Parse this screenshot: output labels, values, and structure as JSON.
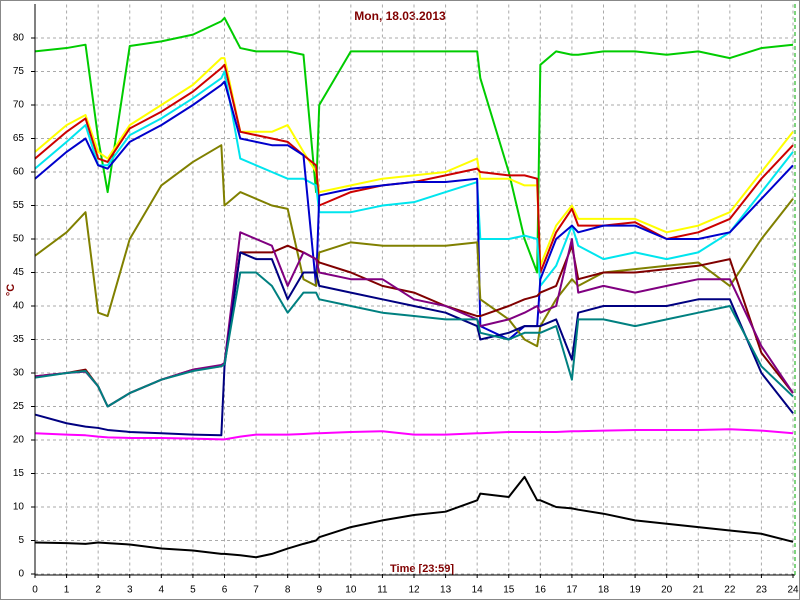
{
  "chart_data": {
    "type": "line",
    "title": "Mon, 18.03.2013",
    "x_label": "Time [23:59]",
    "y_label": "°C",
    "x": [
      0,
      1,
      1.6,
      2,
      2.3,
      3,
      4,
      5,
      5.9,
      6,
      6.5,
      7,
      7.5,
      8,
      8.5,
      8.9,
      9,
      10,
      11,
      12,
      13,
      14,
      14.1,
      15,
      15.5,
      15.9,
      16,
      16.5,
      17,
      17.2,
      18,
      19,
      20,
      21,
      22,
      23,
      24
    ],
    "xlim": [
      0,
      24
    ],
    "xticks": [
      0,
      1,
      2,
      3,
      4,
      5,
      6,
      7,
      8,
      9,
      10,
      11,
      12,
      13,
      14,
      15,
      16,
      17,
      18,
      19,
      20,
      21,
      22,
      23,
      24
    ],
    "ylim": [
      0,
      85
    ],
    "yticks": [
      0,
      5,
      10,
      15,
      20,
      25,
      30,
      35,
      40,
      45,
      50,
      55,
      60,
      65,
      70,
      75,
      80
    ],
    "grid": true,
    "series": [
      {
        "color": "#00cc00",
        "values": [
          78,
          78.5,
          79,
          65,
          57,
          78.8,
          79.5,
          80.5,
          82.5,
          83,
          78.5,
          78,
          78,
          78,
          77.5,
          57,
          70,
          78,
          78,
          78,
          78,
          78,
          74,
          60,
          50,
          45,
          76,
          78,
          77.5,
          77.5,
          78,
          78,
          77.5,
          78,
          77,
          78.5,
          79
        ]
      },
      {
        "color": "#ffff00",
        "values": [
          63,
          67,
          68.5,
          63,
          62,
          67,
          70,
          73,
          77,
          77,
          66,
          66,
          66,
          67,
          63,
          60,
          57,
          58,
          59,
          59.5,
          60,
          62,
          59,
          59,
          58,
          58,
          46,
          52,
          55,
          53,
          53,
          53,
          51,
          52,
          54,
          60,
          66
        ]
      },
      {
        "color": "#cc0000",
        "values": [
          62,
          66,
          68,
          62,
          61.5,
          66.5,
          69,
          72,
          75.5,
          76,
          66,
          65.5,
          65,
          64.5,
          62.5,
          61,
          55,
          57,
          58,
          58.5,
          59.5,
          60.5,
          60,
          59.5,
          59.5,
          59,
          45,
          51,
          54.5,
          52,
          52,
          52.5,
          50,
          51,
          53,
          59,
          64
        ]
      },
      {
        "color": "#00e5ee",
        "values": [
          60.5,
          64.5,
          67,
          61,
          61,
          65.5,
          68,
          71,
          74,
          75,
          62,
          61,
          60,
          59,
          59,
          58,
          54,
          54,
          55,
          55.5,
          57,
          58.5,
          50,
          50,
          50.5,
          50,
          43,
          46,
          52,
          49,
          47,
          48,
          47,
          48,
          51,
          57,
          63
        ]
      },
      {
        "color": "#0000cc",
        "values": [
          59,
          63,
          65,
          61,
          60.5,
          64.5,
          67,
          70,
          73,
          73.5,
          65,
          64.5,
          64,
          64,
          62.5,
          43,
          56.5,
          57.5,
          58,
          58.5,
          58.5,
          59,
          37,
          35,
          37,
          37,
          44,
          50,
          52,
          51,
          52,
          52,
          50,
          50,
          51,
          56,
          61
        ]
      },
      {
        "color": "#808000",
        "values": [
          47.5,
          51,
          54,
          39,
          38.5,
          50,
          58,
          61.5,
          64,
          55,
          57,
          56,
          55,
          54.5,
          44,
          43,
          48,
          49.5,
          49,
          49,
          49,
          49.5,
          41,
          38,
          35,
          34,
          37,
          41,
          44,
          43,
          45,
          45.5,
          46,
          46.5,
          43,
          50,
          56
        ]
      },
      {
        "color": "#800000",
        "values": [
          29.5,
          30,
          30.5,
          28,
          25,
          27,
          29,
          30.5,
          31,
          31.5,
          48,
          48,
          48,
          49,
          48,
          47,
          46.5,
          45,
          43,
          42,
          40,
          38.5,
          38.5,
          40,
          41,
          41.5,
          42,
          43,
          49,
          44,
          45,
          45,
          45.5,
          46,
          47,
          33,
          27
        ]
      },
      {
        "color": "#800080",
        "values": [
          29.5,
          30,
          30.2,
          28,
          25,
          27,
          29,
          30.5,
          31.2,
          31.5,
          51,
          50,
          49,
          43,
          48,
          47,
          45,
          44,
          44,
          41,
          40,
          38,
          37,
          38,
          39,
          40,
          39,
          40,
          50,
          42,
          43,
          42,
          43,
          44,
          44,
          34,
          27
        ]
      },
      {
        "color": "#000080",
        "values": [
          23.8,
          22.5,
          22,
          21.8,
          21.5,
          21.2,
          21,
          20.8,
          20.7,
          31,
          48,
          47,
          47,
          41,
          45,
          45,
          43,
          42,
          41,
          40,
          39,
          37,
          35,
          36,
          37,
          37,
          37,
          38,
          32,
          39,
          40,
          40,
          40,
          41,
          41,
          30,
          24
        ]
      },
      {
        "color": "#008080",
        "values": [
          29.3,
          30,
          30.3,
          28,
          25,
          27,
          29,
          30.3,
          31,
          31.3,
          45,
          45,
          43,
          39,
          42,
          42,
          41,
          40,
          39,
          38.5,
          38,
          38,
          36,
          35,
          36,
          36,
          36,
          37,
          29,
          38,
          38,
          37,
          38,
          39,
          40,
          31,
          26.5
        ]
      },
      {
        "color": "#ff00ff",
        "values": [
          21,
          20.8,
          20.7,
          20.5,
          20.4,
          20.3,
          20.3,
          20.2,
          20.1,
          20.1,
          20.5,
          20.8,
          20.8,
          20.8,
          20.9,
          21,
          21,
          21.2,
          21.3,
          20.8,
          20.8,
          21,
          21,
          21.2,
          21.2,
          21.2,
          21.2,
          21.2,
          21.3,
          21.3,
          21.4,
          21.5,
          21.5,
          21.5,
          21.6,
          21.4,
          21
        ]
      },
      {
        "color": "#000000",
        "values": [
          4.7,
          4.6,
          4.5,
          4.7,
          4.6,
          4.4,
          3.8,
          3.5,
          3,
          3,
          2.8,
          2.5,
          3,
          3.8,
          4.5,
          5,
          5.5,
          7,
          8,
          8.8,
          9.3,
          11,
          12,
          11.5,
          14.5,
          11,
          11,
          10,
          9.8,
          9.6,
          9,
          8,
          7.5,
          7,
          6.5,
          6,
          4.8
        ]
      }
    ]
  }
}
